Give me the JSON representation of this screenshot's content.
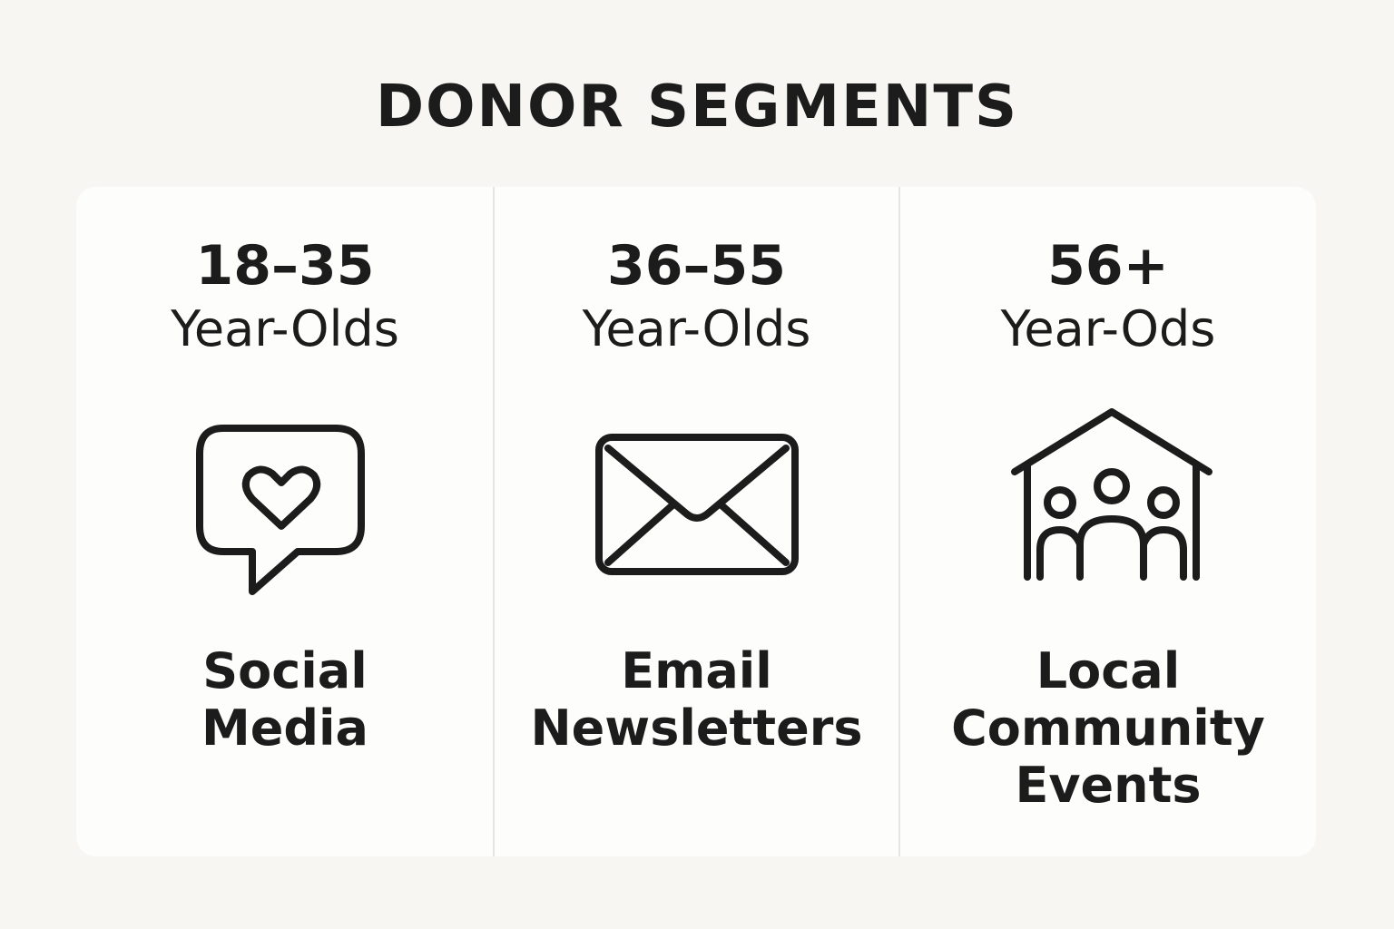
{
  "title": "DONOR SEGMENTS",
  "segments": [
    {
      "age_range": "18–35",
      "age_label": "Year-Olds",
      "icon": "heart-chat-bubble-icon",
      "channel": "Social\nMedia"
    },
    {
      "age_range": "36–55",
      "age_label": "Year-Olds",
      "icon": "envelope-icon",
      "channel": "Email\nNewsletters"
    },
    {
      "age_range": "56+",
      "age_label": "Year-Ods",
      "icon": "house-community-icon",
      "channel": "Local\nCommunity\nEvents"
    }
  ],
  "colors": {
    "background": "#f7f6f2",
    "card": "#fdfdfb",
    "text": "#1c1c1c",
    "divider": "#e6e5e1"
  }
}
